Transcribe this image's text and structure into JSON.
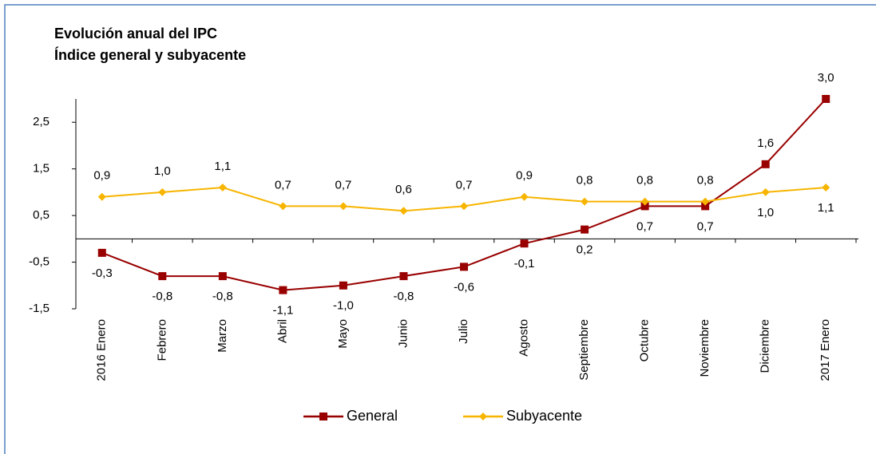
{
  "chart_data": {
    "type": "line",
    "title": "Evolución anual del IPC",
    "subtitle": "Índice general y subyacente",
    "categories": [
      "2016 Enero",
      "Febrero",
      "Marzo",
      "Abril",
      "Mayo",
      "Junio",
      "Julio",
      "Agosto",
      "Septiembre",
      "Octubre",
      "Noviembre",
      "Diciembre",
      "2017 Enero"
    ],
    "series": [
      {
        "name": "General",
        "color": "#990000",
        "marker": "square",
        "values": [
          -0.3,
          -0.8,
          -0.8,
          -1.1,
          -1.0,
          -0.8,
          -0.6,
          -0.1,
          0.2,
          0.7,
          0.7,
          1.6,
          3.0
        ],
        "value_labels": [
          "-0,3",
          "-0,8",
          "-0,8",
          "-1,1",
          "-1,0",
          "-0,8",
          "-0,6",
          "-0,1",
          "0,2",
          "0,7",
          "0,7",
          "1,6",
          "3,0"
        ]
      },
      {
        "name": "Subyacente",
        "color": "#F7B500",
        "marker": "diamond",
        "values": [
          0.9,
          1.0,
          1.1,
          0.7,
          0.7,
          0.6,
          0.7,
          0.9,
          0.8,
          0.8,
          0.8,
          1.0,
          1.1
        ],
        "value_labels": [
          "0,9",
          "1,0",
          "1,1",
          "0,7",
          "0,7",
          "0,6",
          "0,7",
          "0,9",
          "0,8",
          "0,8",
          "0,8",
          "1,0",
          "1,1"
        ]
      }
    ],
    "ylim": [
      -1.5,
      3.0
    ],
    "yticks": [
      {
        "value": -1.5,
        "label": "-1,5"
      },
      {
        "value": -0.5,
        "label": "-0,5"
      },
      {
        "value": 0.5,
        "label": "0,5"
      },
      {
        "value": 1.5,
        "label": "1,5"
      },
      {
        "value": 2.5,
        "label": "2,5"
      }
    ],
    "legend": "bottom",
    "grid": false
  }
}
